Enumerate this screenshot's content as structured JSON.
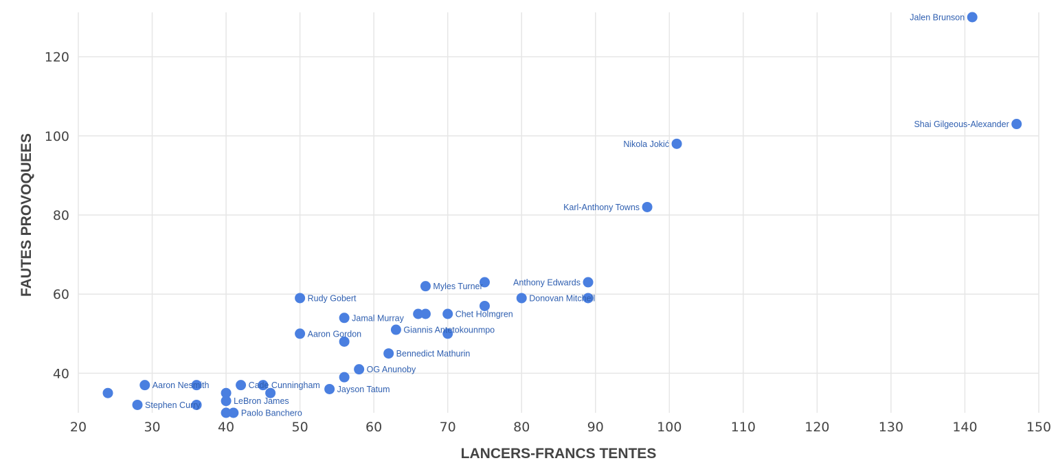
{
  "chart_data": {
    "type": "scatter",
    "xlabel": "LANCERS-FRANCS TENTES",
    "ylabel": "FAUTES PROVOQUEES",
    "xlim": [
      20,
      150
    ],
    "ylim": [
      30,
      130
    ],
    "x_ticks": [
      20,
      30,
      40,
      50,
      60,
      70,
      80,
      90,
      100,
      110,
      120,
      130,
      140,
      150
    ],
    "y_ticks": [
      40,
      60,
      80,
      100,
      120
    ],
    "grid": true,
    "point_color": "#4a7fe0",
    "label_color": "#2f5fb0",
    "points": [
      {
        "x": 141,
        "y": 130,
        "label": "Jalen Brunson"
      },
      {
        "x": 147,
        "y": 103,
        "label": "Shai Gilgeous-Alexander"
      },
      {
        "x": 101,
        "y": 98,
        "label": "Nikola Jokić"
      },
      {
        "x": 97,
        "y": 82,
        "label": "Karl-Anthony Towns"
      },
      {
        "x": 89,
        "y": 63,
        "label": "Anthony Edwards"
      },
      {
        "x": 89,
        "y": 59,
        "label": ""
      },
      {
        "x": 80,
        "y": 59,
        "label": "Donovan Mitchell"
      },
      {
        "x": 75,
        "y": 63,
        "label": ""
      },
      {
        "x": 75,
        "y": 57,
        "label": ""
      },
      {
        "x": 67,
        "y": 62,
        "label": "Myles Turner"
      },
      {
        "x": 70,
        "y": 55,
        "label": "Chet Holmgren"
      },
      {
        "x": 66,
        "y": 55,
        "label": ""
      },
      {
        "x": 67,
        "y": 55,
        "label": ""
      },
      {
        "x": 70,
        "y": 50,
        "label": ""
      },
      {
        "x": 63,
        "y": 51,
        "label": "Giannis Antetokounmpo"
      },
      {
        "x": 62,
        "y": 45,
        "label": "Bennedict Mathurin"
      },
      {
        "x": 58,
        "y": 41,
        "label": "OG Anunoby"
      },
      {
        "x": 56,
        "y": 54,
        "label": "Jamal Murray"
      },
      {
        "x": 56,
        "y": 48,
        "label": ""
      },
      {
        "x": 56,
        "y": 39,
        "label": ""
      },
      {
        "x": 54,
        "y": 36,
        "label": "Jayson Tatum"
      },
      {
        "x": 50,
        "y": 59,
        "label": "Rudy Gobert"
      },
      {
        "x": 50,
        "y": 50,
        "label": "Aaron Gordon"
      },
      {
        "x": 46,
        "y": 35,
        "label": ""
      },
      {
        "x": 45,
        "y": 37,
        "label": ""
      },
      {
        "x": 42,
        "y": 37,
        "label": "Cade Cunningham"
      },
      {
        "x": 41,
        "y": 30,
        "label": "Paolo Banchero"
      },
      {
        "x": 40,
        "y": 35,
        "label": ""
      },
      {
        "x": 40,
        "y": 33,
        "label": "LeBron James"
      },
      {
        "x": 40,
        "y": 30,
        "label": ""
      },
      {
        "x": 36,
        "y": 37,
        "label": ""
      },
      {
        "x": 36,
        "y": 32,
        "label": ""
      },
      {
        "x": 29,
        "y": 37,
        "label": "Aaron Nesmith"
      },
      {
        "x": 28,
        "y": 32,
        "label": "Stephen Curry"
      },
      {
        "x": 24,
        "y": 35,
        "label": ""
      }
    ]
  }
}
